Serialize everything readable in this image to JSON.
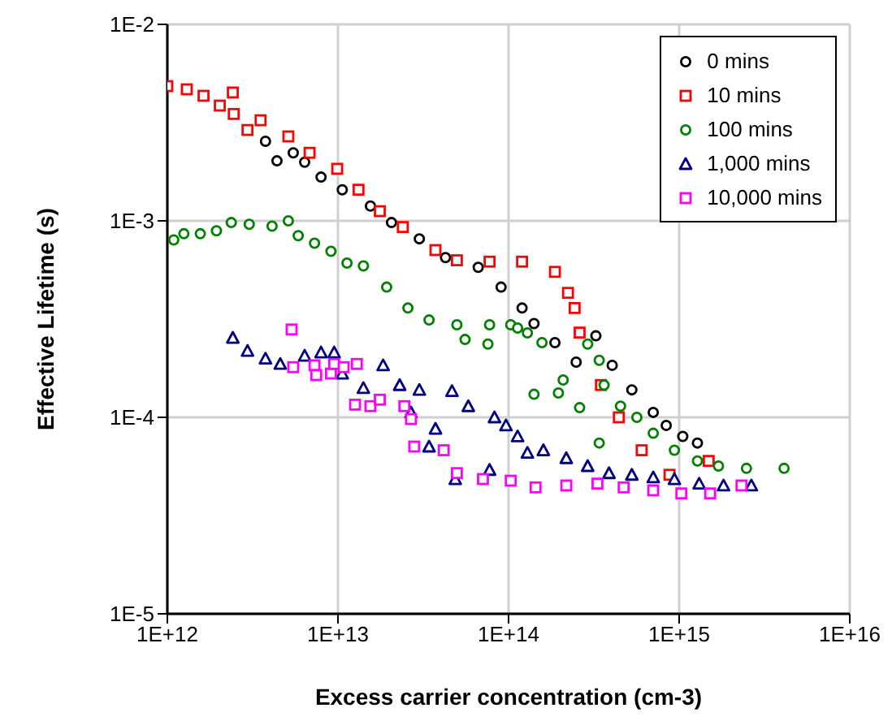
{
  "chart_data": {
    "type": "scatter",
    "xlabel": "Excess carrier concentration   (cm-3)",
    "ylabel": "Effective Lifetime  (s)",
    "log": "xy",
    "grid": true,
    "legend": "top right",
    "xlim": [
      1000000000000.0,
      1e+16
    ],
    "ylim": [
      1e-05,
      0.01
    ],
    "xticks": [
      {
        "value": 1000000000000.0,
        "label": "1E+12"
      },
      {
        "value": 10000000000000.0,
        "label": "1E+13"
      },
      {
        "value": 100000000000000.0,
        "label": "1E+14"
      },
      {
        "value": 1000000000000000.0,
        "label": "1E+15"
      },
      {
        "value": 1e+16,
        "label": "1E+16"
      }
    ],
    "yticks": [
      {
        "value": 1e-05,
        "label": "1E-5"
      },
      {
        "value": 0.0001,
        "label": "1E-4"
      },
      {
        "value": 0.001,
        "label": "1E-3"
      },
      {
        "value": 0.01,
        "label": "1E-2"
      }
    ],
    "series": [
      {
        "name": "0 mins",
        "color": "#000000",
        "marker": "circle",
        "x": [
          3760000000000.0,
          4390000000000.0,
          5470000000000.0,
          6380000000000.0,
          7960000000000.0,
          10600000000000.0,
          15500000000000.0,
          20600000000000.0,
          30000000000000.0,
          42700000000000.0,
          66400000000000.0,
          90400000000000.0,
          120000000000000.0,
          141000000000000.0,
          187000000000000.0,
          249000000000000.0,
          325000000000000.0,
          405000000000000.0,
          528000000000000.0,
          705000000000000.0,
          840000000000000.0,
          1050000000000000.0,
          1280000000000000.0
        ],
        "values": [
          0.00254,
          0.00202,
          0.00222,
          0.00199,
          0.00167,
          0.00144,
          0.00119,
          0.00098,
          0.00081,
          0.00065,
          0.00058,
          0.00046,
          0.00036,
          0.0003,
          0.00024,
          0.000191,
          0.00026,
          0.000184,
          0.000138,
          0.000106,
          9.1e-05,
          8e-05,
          7.4e-05
        ]
      },
      {
        "name": "10 mins",
        "color": "#ff0000",
        "marker": "square",
        "x": [
          1000000000000.0,
          1300000000000.0,
          1630000000000.0,
          2030000000000.0,
          2420000000000.0,
          2450000000000.0,
          2950000000000.0,
          3520000000000.0,
          5120000000000.0,
          6820000000000.0,
          9900000000000.0,
          13200000000000.0,
          17600000000000.0,
          24000000000000.0,
          37300000000000.0,
          49800000000000.0,
          77400000000000.0,
          120000000000000.0,
          187000000000000.0,
          223000000000000.0,
          244000000000000.0,
          261000000000000.0,
          348000000000000.0,
          443000000000000.0,
          603000000000000.0,
          878000000000000.0,
          1490000000000000.0
        ],
        "values": [
          0.00485,
          0.00467,
          0.00433,
          0.00386,
          0.0045,
          0.0035,
          0.0029,
          0.00325,
          0.00269,
          0.00222,
          0.00184,
          0.00144,
          0.00112,
          0.00093,
          0.00071,
          0.00063,
          0.00062,
          0.00062,
          0.00055,
          0.00043,
          0.00036,
          0.00027,
          0.000146,
          0.0001,
          6.8e-05,
          5.1e-05,
          6e-05
        ]
      },
      {
        "name": "100 mins",
        "color": "#008000",
        "marker": "circle",
        "x": [
          1090000000000.0,
          1250000000000.0,
          1560000000000.0,
          1940000000000.0,
          2370000000000.0,
          3020000000000.0,
          4110000000000.0,
          5120000000000.0,
          5850000000000.0,
          7290000000000.0,
          9100000000000.0,
          11300000000000.0,
          14100000000000.0,
          19300000000000.0,
          25700000000000.0,
          34200000000000.0,
          49800000000000.0,
          55600000000000.0,
          75700000000000.0,
          77400000000000.0,
          103000000000000.0,
          113000000000000.0,
          129000000000000.0,
          141000000000000.0,
          157000000000000.0,
          196000000000000.0,
          209000000000000.0,
          261000000000000.0,
          291000000000000.0,
          340000000000000.0,
          363000000000000.0,
          453000000000000.0,
          565000000000000.0,
          340000000000000.0,
          705000000000000.0,
          938000000000000.0,
          1280000000000000.0,
          1700000000000000.0,
          2480000000000000.0,
          4120000000000000.0
        ],
        "values": [
          0.0008,
          0.00086,
          0.00086,
          0.00089,
          0.00098,
          0.00096,
          0.00094,
          0.001,
          0.00084,
          0.00077,
          0.0007,
          0.00061,
          0.00059,
          0.00046,
          0.00036,
          0.000313,
          0.000296,
          0.000249,
          0.000236,
          0.000296,
          0.000296,
          0.000285,
          0.000269,
          0.000131,
          0.00024,
          0.000133,
          0.000155,
          0.000112,
          0.000236,
          0.000195,
          0.000146,
          0.000114,
          0.0001,
          7.4e-05,
          8.3e-05,
          6.8e-05,
          6e-05,
          5.65e-05,
          5.5e-05,
          5.5e-05
        ]
      },
      {
        "name": "1,000 mins",
        "color": "#000080",
        "marker": "triangle",
        "x": [
          2420000000000.0,
          2950000000000.0,
          3760000000000.0,
          4590000000000.0,
          6380000000000.0,
          7960000000000.0,
          9500000000000.0,
          10600000000000.0,
          14100000000000.0,
          18400000000000.0,
          23000000000000.0,
          26800000000000.0,
          30000000000000.0,
          34200000000000.0,
          37300000000000.0,
          46600000000000.0,
          48700000000000.0,
          58100000000000.0,
          77400000000000.0,
          82700000000000.0,
          96600000000000.0,
          113000000000000.0,
          129000000000000.0,
          160000000000000.0,
          218000000000000.0,
          291000000000000.0,
          388000000000000.0,
          528000000000000.0,
          705000000000000.0,
          938000000000000.0,
          1310000000000000.0,
          1820000000000000.0,
          2650000000000000.0
        ],
        "values": [
          0.000254,
          0.000218,
          0.000199,
          0.000187,
          0.000206,
          0.000214,
          0.000214,
          0.000167,
          0.000141,
          0.000184,
          0.000146,
          0.000106,
          0.000138,
          7.1e-05,
          8.75e-05,
          0.000136,
          4.85e-05,
          0.000114,
          5.4e-05,
          0.0001,
          9.1e-05,
          8e-05,
          6.6e-05,
          6.8e-05,
          6.2e-05,
          5.65e-05,
          5.2e-05,
          5.1e-05,
          4.95e-05,
          4.85e-05,
          4.6e-05,
          4.5e-05,
          4.5e-05
        ]
      },
      {
        "name": "10,000 mins",
        "color": "#ff00ff",
        "marker": "square",
        "x": [
          5350000000000.0,
          5470000000000.0,
          7290000000000.0,
          7460000000000.0,
          9100000000000.0,
          9500000000000.0,
          10800000000000.0,
          12900000000000.0,
          12600000000000.0,
          15500000000000.0,
          17600000000000.0,
          24500000000000.0,
          26800000000000.0,
          28000000000000.0,
          41700000000000.0,
          49800000000000.0,
          70800000000000.0,
          103000000000000.0,
          144000000000000.0,
          218000000000000.0,
          332000000000000.0,
          473000000000000.0,
          705000000000000.0,
          1030000000000000.0,
          1520000000000000.0,
          2320000000000000.0
        ],
        "values": [
          0.00028,
          0.00018,
          0.000184,
          0.000164,
          0.000167,
          0.000187,
          0.00018,
          0.000187,
          0.000116,
          0.000114,
          0.000123,
          0.000114,
          9.8e-05,
          7.1e-05,
          6.8e-05,
          5.2e-05,
          4.85e-05,
          4.76e-05,
          4.4e-05,
          4.5e-05,
          4.6e-05,
          4.4e-05,
          4.25e-05,
          4.1e-05,
          4.1e-05,
          4.5e-05
        ]
      }
    ]
  }
}
